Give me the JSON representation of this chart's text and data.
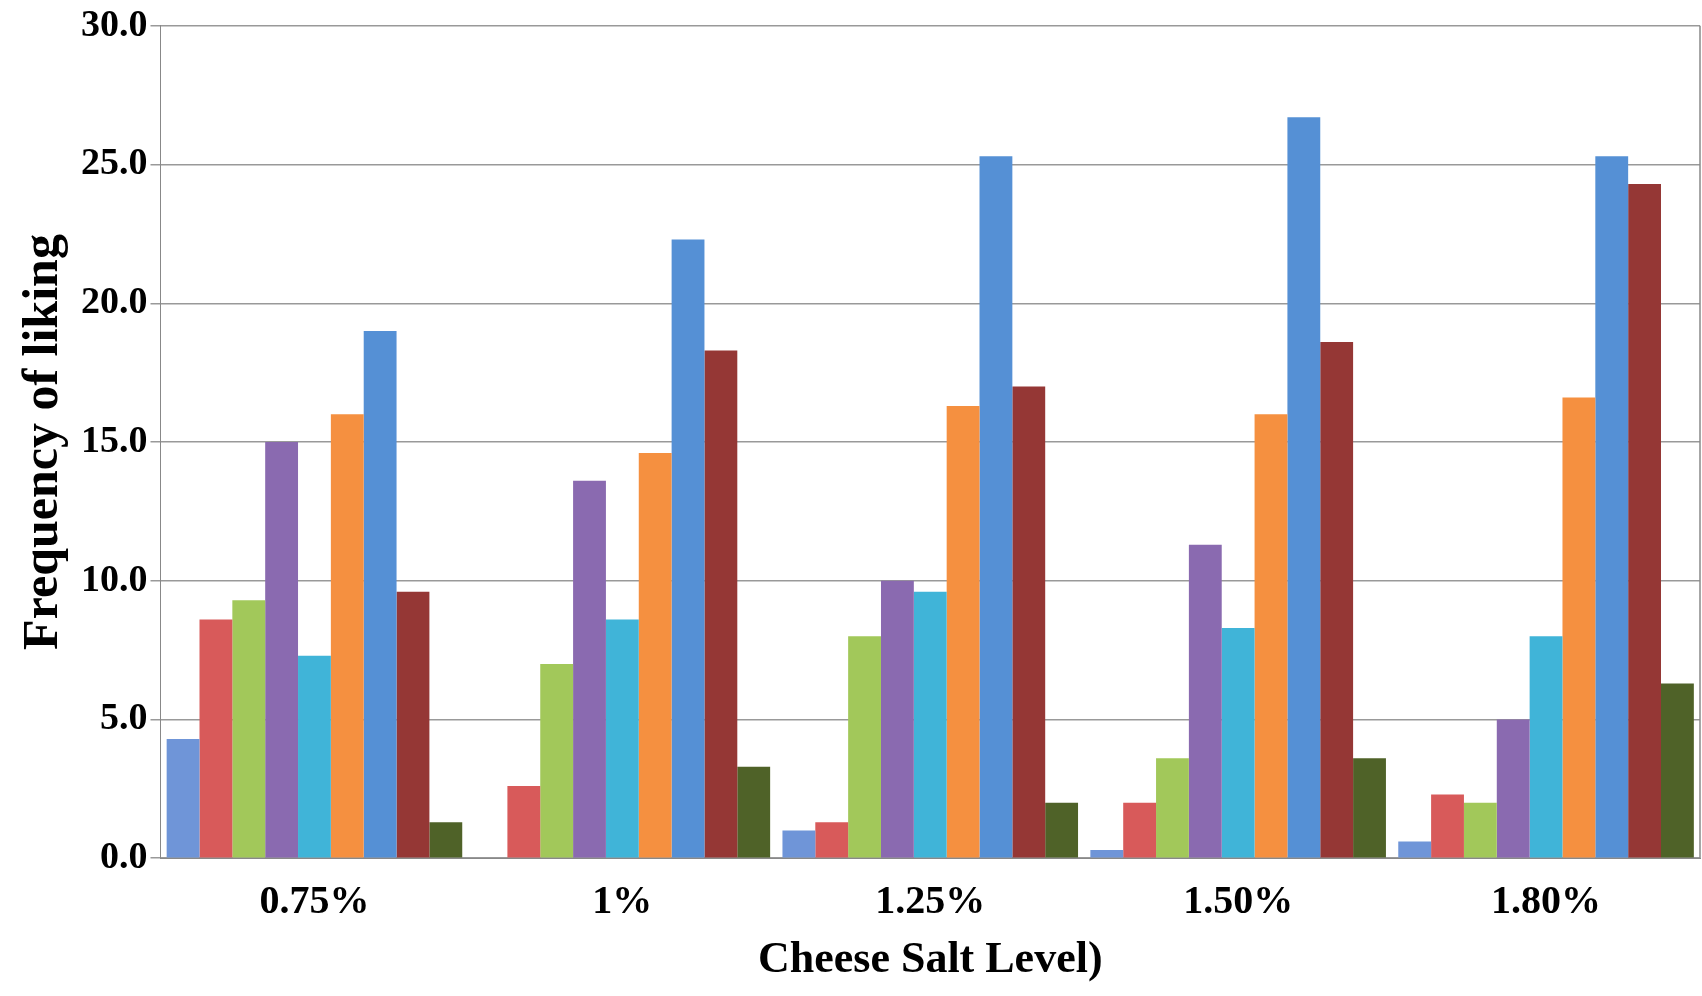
{
  "chart_data": {
    "type": "bar",
    "xlabel": "Cheese Salt Level)",
    "ylabel": "Frequency of liking",
    "categories": [
      "0.75%",
      "1%",
      "1.25%",
      "1.50%",
      "1.80%"
    ],
    "series": [
      {
        "color": "#6f95d8",
        "values": [
          4.3,
          0,
          1.0,
          0.3,
          0.6
        ]
      },
      {
        "color": "#d85a5a",
        "values": [
          8.6,
          2.6,
          1.3,
          2.0,
          2.3
        ]
      },
      {
        "color": "#a2c85a",
        "values": [
          9.3,
          7.0,
          8.0,
          3.6,
          2.0
        ]
      },
      {
        "color": "#8a6ab0",
        "values": [
          15.0,
          13.6,
          10.0,
          11.3,
          5.0
        ]
      },
      {
        "color": "#40b4d8",
        "values": [
          7.3,
          8.6,
          9.6,
          8.3,
          8.0
        ]
      },
      {
        "color": "#f59040",
        "values": [
          16.0,
          14.6,
          16.3,
          16.0,
          16.6
        ]
      },
      {
        "color": "#5590d5",
        "values": [
          19.0,
          22.3,
          25.3,
          26.7,
          25.3
        ]
      },
      {
        "color": "#953735",
        "values": [
          9.6,
          18.3,
          17.0,
          18.6,
          24.3
        ]
      },
      {
        "color": "#4f6228",
        "values": [
          1.3,
          3.3,
          2.0,
          3.6,
          6.3
        ]
      }
    ],
    "ylim": [
      0,
      30
    ],
    "yticks": [
      {
        "value": 0,
        "label": "0.0"
      },
      {
        "value": 5,
        "label": "5.0"
      },
      {
        "value": 10,
        "label": "10.0"
      },
      {
        "value": 15,
        "label": "15.0"
      },
      {
        "value": 20,
        "label": "20.0"
      },
      {
        "value": 25,
        "label": "25.0"
      },
      {
        "value": 30,
        "label": "30.0"
      }
    ],
    "grid": "y",
    "legend": false
  }
}
